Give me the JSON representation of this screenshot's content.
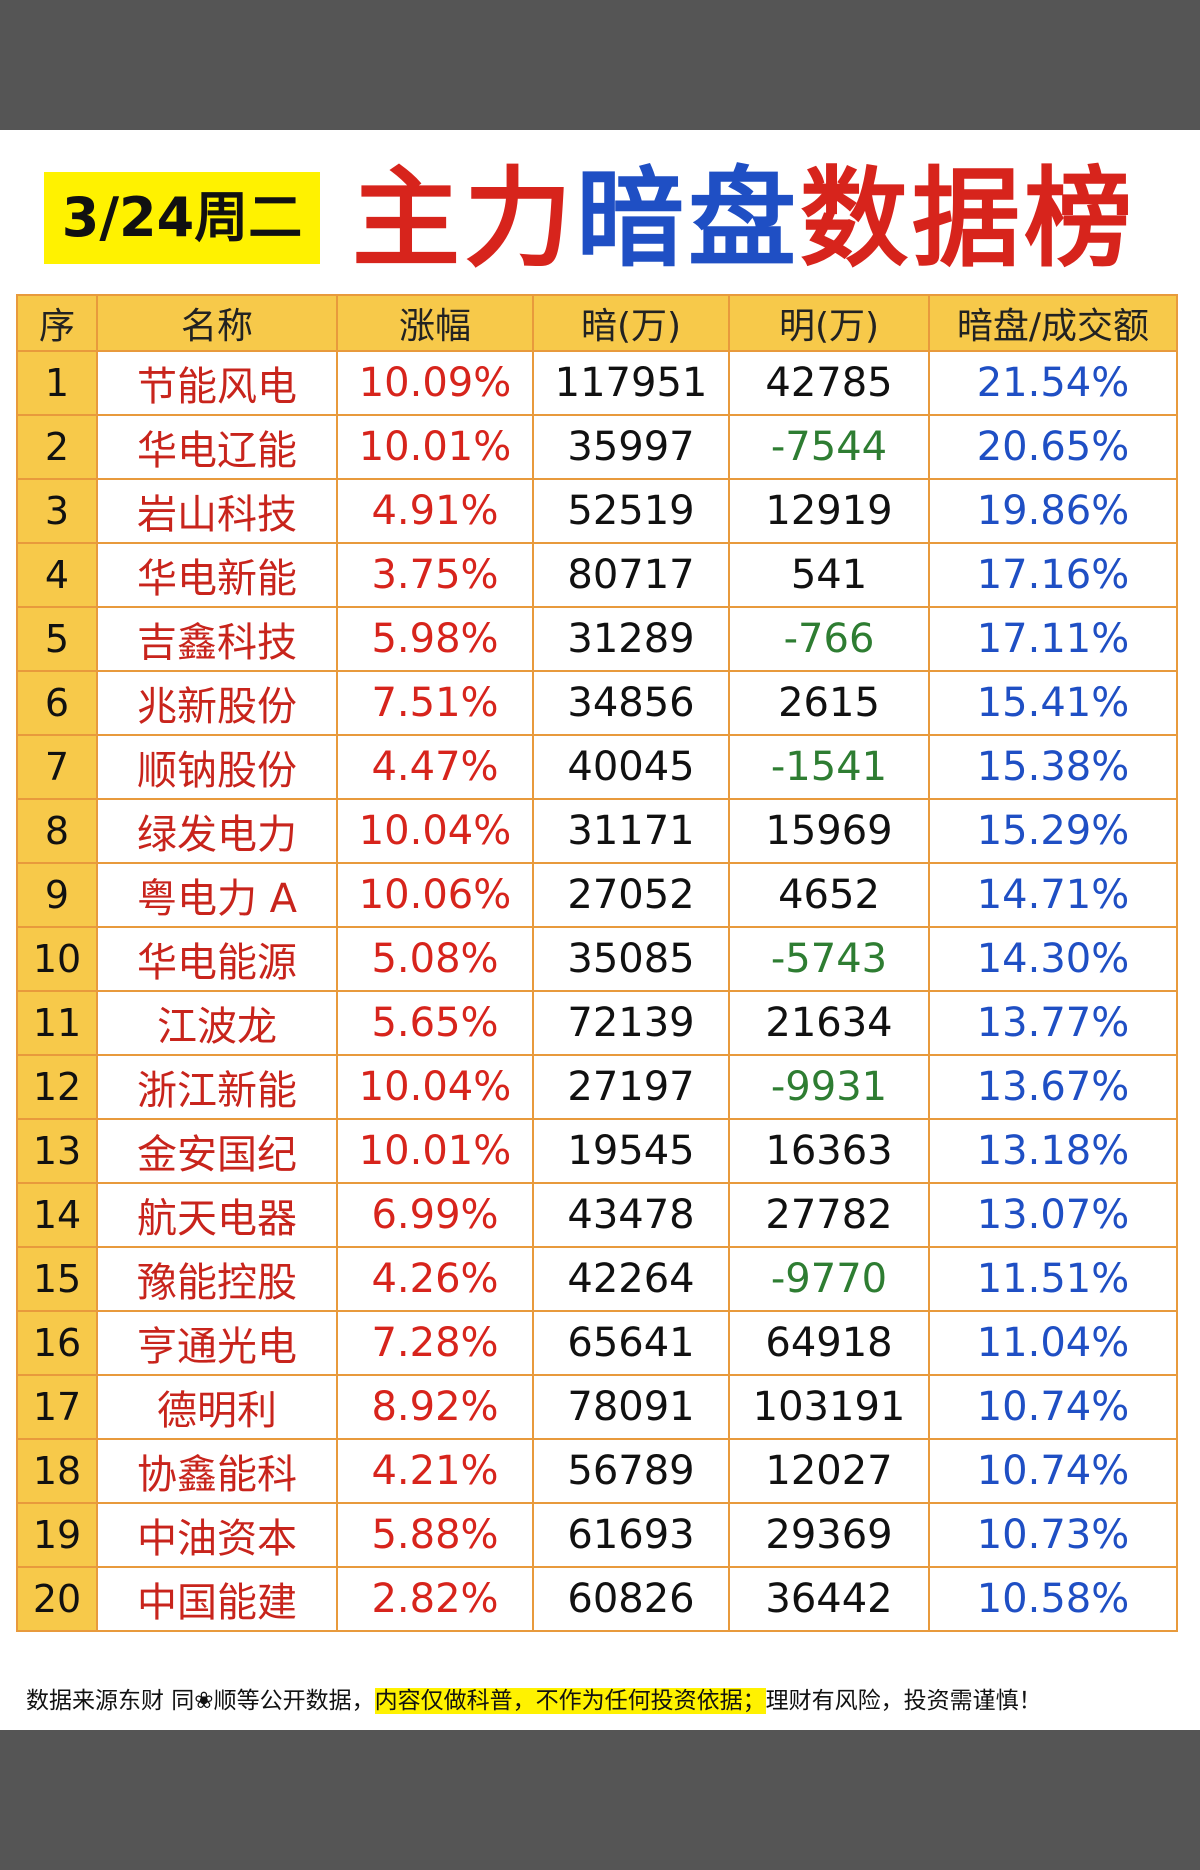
{
  "header": {
    "date": "3/24周二",
    "title_parts": [
      {
        "text": "主力",
        "color": "red"
      },
      {
        "text": "暗盘",
        "color": "blue"
      },
      {
        "text": "数据榜",
        "color": "red"
      }
    ]
  },
  "colors": {
    "title_red": "#d7241c",
    "title_blue": "#1f4fc4",
    "header_bg": "#f7c94a",
    "grid_line": "#e89a3c",
    "negative_green": "#2e7d32",
    "badge_yellow": "#fff200"
  },
  "table": {
    "columns": [
      "序",
      "名称",
      "涨幅",
      "暗(万)",
      "明(万)",
      "暗盘/成交额"
    ],
    "rows": [
      {
        "seq": "1",
        "name": "节能风电",
        "change": "10.09%",
        "dark": "117951",
        "light": "42785",
        "ratio": "21.54%"
      },
      {
        "seq": "2",
        "name": "华电辽能",
        "change": "10.01%",
        "dark": "35997",
        "light": "-7544",
        "ratio": "20.65%"
      },
      {
        "seq": "3",
        "name": "岩山科技",
        "change": "4.91%",
        "dark": "52519",
        "light": "12919",
        "ratio": "19.86%"
      },
      {
        "seq": "4",
        "name": "华电新能",
        "change": "3.75%",
        "dark": "80717",
        "light": "541",
        "ratio": "17.16%"
      },
      {
        "seq": "5",
        "name": "吉鑫科技",
        "change": "5.98%",
        "dark": "31289",
        "light": "-766",
        "ratio": "17.11%"
      },
      {
        "seq": "6",
        "name": "兆新股份",
        "change": "7.51%",
        "dark": "34856",
        "light": "2615",
        "ratio": "15.41%"
      },
      {
        "seq": "7",
        "name": "顺钠股份",
        "change": "4.47%",
        "dark": "40045",
        "light": "-1541",
        "ratio": "15.38%"
      },
      {
        "seq": "8",
        "name": "绿发电力",
        "change": "10.04%",
        "dark": "31171",
        "light": "15969",
        "ratio": "15.29%"
      },
      {
        "seq": "9",
        "name": "粤电力 A",
        "change": "10.06%",
        "dark": "27052",
        "light": "4652",
        "ratio": "14.71%"
      },
      {
        "seq": "10",
        "name": "华电能源",
        "change": "5.08%",
        "dark": "35085",
        "light": "-5743",
        "ratio": "14.30%"
      },
      {
        "seq": "11",
        "name": "江波龙",
        "change": "5.65%",
        "dark": "72139",
        "light": "21634",
        "ratio": "13.77%"
      },
      {
        "seq": "12",
        "name": "浙江新能",
        "change": "10.04%",
        "dark": "27197",
        "light": "-9931",
        "ratio": "13.67%"
      },
      {
        "seq": "13",
        "name": "金安国纪",
        "change": "10.01%",
        "dark": "19545",
        "light": "16363",
        "ratio": "13.18%"
      },
      {
        "seq": "14",
        "name": "航天电器",
        "change": "6.99%",
        "dark": "43478",
        "light": "27782",
        "ratio": "13.07%"
      },
      {
        "seq": "15",
        "name": "豫能控股",
        "change": "4.26%",
        "dark": "42264",
        "light": "-9770",
        "ratio": "11.51%"
      },
      {
        "seq": "16",
        "name": "亨通光电",
        "change": "7.28%",
        "dark": "65641",
        "light": "64918",
        "ratio": "11.04%"
      },
      {
        "seq": "17",
        "name": "德明利",
        "change": "8.92%",
        "dark": "78091",
        "light": "103191",
        "ratio": "10.74%"
      },
      {
        "seq": "18",
        "name": "协鑫能科",
        "change": "4.21%",
        "dark": "56789",
        "light": "12027",
        "ratio": "10.74%"
      },
      {
        "seq": "19",
        "name": "中油资本",
        "change": "5.88%",
        "dark": "61693",
        "light": "29369",
        "ratio": "10.73%"
      },
      {
        "seq": "20",
        "name": "中国能建",
        "change": "2.82%",
        "dark": "60826",
        "light": "36442",
        "ratio": "10.58%"
      }
    ]
  },
  "footer": {
    "source": "数据来源东财 同❀顺等公开数据，",
    "disclaimer": "内容仅做科普，不作为任何投资依据；",
    "risk": "理财有风险，投资需谨慎！"
  }
}
